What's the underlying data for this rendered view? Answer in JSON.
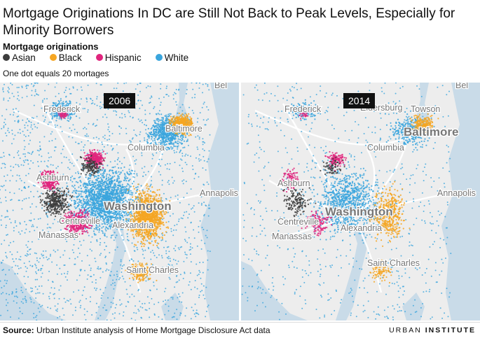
{
  "title": "Mortgage Originations In DC are Still Not Back to Peak Levels, Especially for Minority Borrowers",
  "legend": {
    "title": "Mortgage originations",
    "items": [
      {
        "label": "Asian",
        "color": "#3d3d3d"
      },
      {
        "label": "Black",
        "color": "#f5a623"
      },
      {
        "label": "Hispanic",
        "color": "#e0257d"
      },
      {
        "label": "White",
        "color": "#3aa5dd"
      }
    ]
  },
  "dot_note": "One dot equals 20 mortages",
  "colors": {
    "map_land": "#ededed",
    "map_water": "#c9dbe8",
    "Asian": "#3d3d3d",
    "Black": "#f5a623",
    "Hispanic": "#e0257d",
    "White": "#3aa5dd"
  },
  "maps": [
    {
      "year": "2006",
      "cities": [
        "Frederick",
        "Baltimore",
        "Columbia",
        "Ashburn",
        "Annapolis",
        "Washington",
        "Alexandria",
        "Manassas",
        "Centreville",
        "Saint Charles",
        "Bel"
      ]
    },
    {
      "year": "2014",
      "cities": [
        "Frederick",
        "Eldersburg",
        "Towson",
        "Baltimore",
        "Columbia",
        "Ashburn",
        "Annapolis",
        "Washington",
        "Centreville",
        "Alexandria",
        "Manassas",
        "Saint Charles",
        "Bel"
      ]
    }
  ],
  "source": {
    "label": "Source:",
    "text": "Urban Institute analysis of Home Mortgage Disclosure Act data"
  },
  "brand": {
    "urban": "URBAN",
    "institute": "INSTITUTE"
  }
}
